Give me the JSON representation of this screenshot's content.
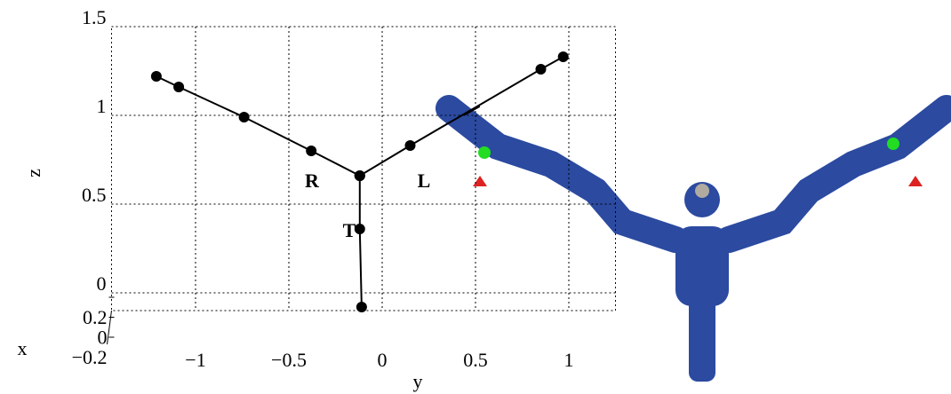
{
  "chart_data": {
    "type": "line3d",
    "xlabel": "x",
    "ylabel": "y",
    "zlabel": "z",
    "xlim": [
      -0.2,
      0.2
    ],
    "xticks": [
      {
        "value": -0.2,
        "label": "−0.2"
      },
      0,
      0.2
    ],
    "ylim": [
      -1.45,
      1.25
    ],
    "yticks": [
      {
        "value": -1,
        "label": "−1"
      },
      {
        "value": -0.5,
        "label": "−0.5"
      },
      0,
      0.5,
      1
    ],
    "zlim": [
      -0.1,
      1.5
    ],
    "zticks": [
      0,
      0.5,
      1,
      1.5
    ],
    "grid": true,
    "color": "#000000",
    "series": [
      {
        "name": "R",
        "y": [
          -1.21,
          -1.09,
          -0.74,
          -0.38,
          -0.12
        ],
        "z": [
          1.22,
          1.16,
          0.99,
          0.8,
          0.66
        ]
      },
      {
        "name": "L",
        "y": [
          -0.12,
          0.15,
          0.85,
          0.97
        ],
        "z": [
          0.66,
          0.83,
          1.26,
          1.33
        ]
      },
      {
        "name": "T",
        "y": [
          -0.12,
          -0.12,
          -0.11
        ],
        "z": [
          0.66,
          0.36,
          -0.08
        ]
      }
    ]
  }
}
